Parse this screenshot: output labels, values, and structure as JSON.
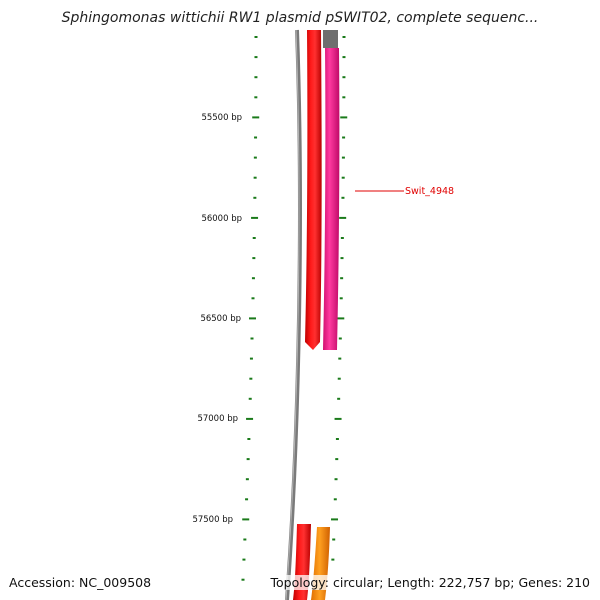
{
  "header": {
    "title": "Sphingomonas wittichii RW1 plasmid pSWIT02, complete sequenc..."
  },
  "footer": {
    "accession": "Accession: NC_009508",
    "summary": "Topology: circular; Length: 222,757 bp; Genes: 210"
  },
  "scale": {
    "labels": [
      "55500 bp",
      "56000 bp",
      "56500 bp",
      "57000 bp",
      "57500 bp"
    ]
  },
  "genes": {
    "highlight_label": "Swit_4948"
  },
  "colors": {
    "tick": "#1a7a1a",
    "backbone": "#7a7a7a",
    "gene_red": "#ff0000",
    "gene_magenta": "#ff1493",
    "gene_orange": "#ff8c00",
    "label": "#e00000"
  }
}
